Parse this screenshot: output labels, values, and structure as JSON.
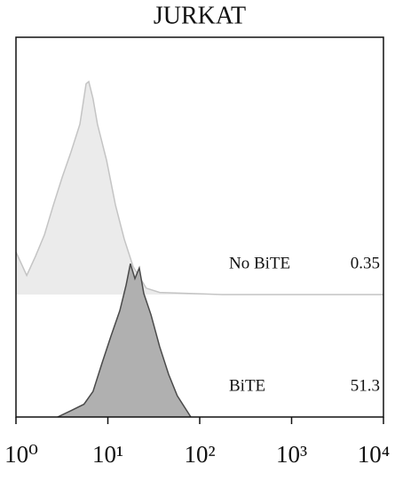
{
  "chart_data": {
    "type": "histogram",
    "title": "JURKAT",
    "log_x": true,
    "xlim": [
      1,
      10000
    ],
    "xticks": [
      {
        "value": 1,
        "label": "10⁰"
      },
      {
        "value": 10,
        "label": "10¹"
      },
      {
        "value": 100,
        "label": "10²"
      },
      {
        "value": 1000,
        "label": "10³"
      },
      {
        "value": 10000,
        "label": "10⁴"
      }
    ],
    "ylim": [
      0,
      100
    ],
    "series": [
      {
        "name": "No BiTE",
        "percent": 0.35,
        "color": "#ebebeb",
        "line_color": "#c4c4c4",
        "x": [
          1,
          1.31,
          1.63,
          2.04,
          2.55,
          3.18,
          3.97,
          4.96,
          5.8,
          6.2,
          6.9,
          7.7,
          9.7,
          12.1,
          15.1,
          18.9,
          26.2,
          36.7,
          174,
          10000
        ],
        "values": [
          20,
          9,
          18,
          28,
          42,
          55,
          67,
          80,
          99,
          100,
          92,
          80,
          63,
          42,
          26,
          13,
          3,
          1,
          0,
          0
        ]
      },
      {
        "name": "BiTE",
        "percent": 51.3,
        "color": "#b0b0b0",
        "line_color": "#4a4a4a",
        "x": [
          2.84,
          3.97,
          5.5,
          6.9,
          8.6,
          10.8,
          13.5,
          15.8,
          17.6,
          19.7,
          22,
          24.6,
          29.5,
          36.7,
          45.9,
          57,
          80
        ],
        "values": [
          0,
          3,
          6,
          12,
          25,
          38,
          50,
          62,
          72,
          65,
          70,
          58,
          48,
          33,
          20,
          10,
          0
        ]
      }
    ]
  }
}
